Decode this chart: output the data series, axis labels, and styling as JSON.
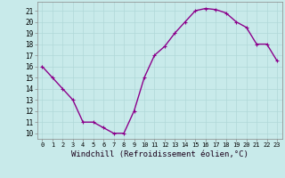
{
  "x": [
    0,
    1,
    2,
    3,
    4,
    5,
    6,
    7,
    8,
    9,
    10,
    11,
    12,
    13,
    14,
    15,
    16,
    17,
    18,
    19,
    20,
    21,
    22,
    23
  ],
  "y": [
    16,
    15,
    14,
    13,
    11,
    11,
    10.5,
    10,
    10,
    12,
    15,
    17,
    17.8,
    19,
    20,
    21,
    21.2,
    21.1,
    20.8,
    20,
    19.5,
    18,
    18,
    16.5
  ],
  "line_color": "#8b008b",
  "marker": "P",
  "marker_size": 3,
  "linewidth": 1.0,
  "bg_color": "#c8eaea",
  "grid_color": "#b0d8d8",
  "xlabel": "Windchill (Refroidissement éolien,°C)",
  "xlabel_fontsize": 6.5,
  "ylabel_ticks": [
    10,
    11,
    12,
    13,
    14,
    15,
    16,
    17,
    18,
    19,
    20,
    21
  ],
  "xlim": [
    -0.5,
    23.5
  ],
  "ylim": [
    9.5,
    21.8
  ],
  "xtick_fontsize": 5.0,
  "ytick_fontsize": 5.5
}
